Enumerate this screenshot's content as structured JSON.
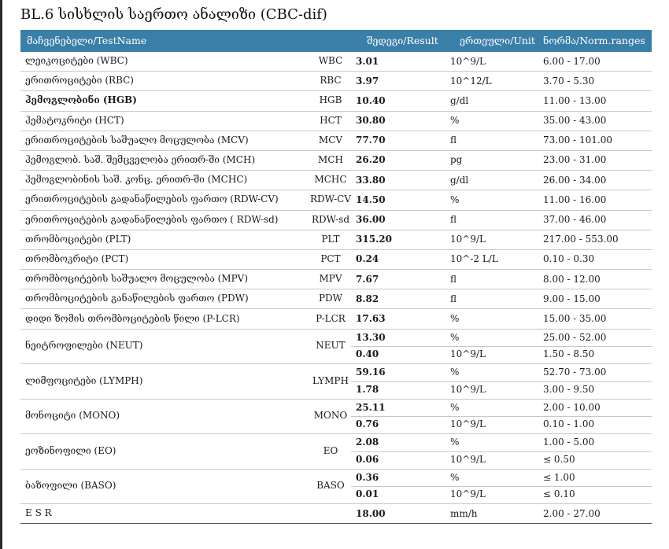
{
  "title": "BL.6   სისხლის საერთო ანალიზი (CBC-dif)",
  "header": {
    "name": "მაჩვენებელი/TestName",
    "result": "შედეგი/Result",
    "unit": "ერთეული/Unit",
    "range": "ნორმა/Norm.ranges"
  },
  "rows": [
    {
      "name": "ლეიკოციტები (WBC)",
      "code": "WBC",
      "vals": [
        {
          "result": "3.01",
          "unit": "10^9/L",
          "range": "6.00 - 17.00"
        }
      ]
    },
    {
      "name": "ერითროციტები (RBC)",
      "code": "RBC",
      "vals": [
        {
          "result": "3.97",
          "unit": "10^12/L",
          "range": "3.70 - 5.30"
        }
      ]
    },
    {
      "name": "ჰემოგლობინი (HGB)",
      "code": "HGB",
      "bold": true,
      "vals": [
        {
          "result": "10.40",
          "unit": "g/dl",
          "range": "11.00 - 13.00"
        }
      ]
    },
    {
      "name": "ჰემატოკრიტი (HCT)",
      "code": "HCT",
      "vals": [
        {
          "result": "30.80",
          "unit": "%",
          "range": "35.00 - 43.00"
        }
      ]
    },
    {
      "name": "ერითროციტების საშუალო მოცულობა (MCV)",
      "code": "MCV",
      "vals": [
        {
          "result": "77.70",
          "unit": "fl",
          "range": "73.00 - 101.00"
        }
      ]
    },
    {
      "name": "ჰემოგლობ. საშ. შემცველობა ერითრ-ში (MCH)",
      "code": "MCH",
      "vals": [
        {
          "result": "26.20",
          "unit": "pg",
          "range": "23.00 - 31.00"
        }
      ]
    },
    {
      "name": "ჰემოგლობინის საშ. კონც. ერითრ-ში (MCHC)",
      "code": "MCHC",
      "vals": [
        {
          "result": "33.80",
          "unit": "g/dl",
          "range": "26.00 - 34.00"
        }
      ]
    },
    {
      "name": "ერითროციტების გადანაწილების ფართო (RDW-CV)",
      "code": "RDW-CV",
      "vals": [
        {
          "result": "14.50",
          "unit": "%",
          "range": "11.00 - 16.00"
        }
      ]
    },
    {
      "name": "ერითროციტების გადანაწილების ფართო ( RDW-sd)",
      "code": "RDW-sd",
      "vals": [
        {
          "result": "36.00",
          "unit": "fl",
          "range": "37.00 - 46.00"
        }
      ]
    },
    {
      "name": "თრომბოციტები (PLT)",
      "code": "PLT",
      "vals": [
        {
          "result": "315.20",
          "unit": "10^9/L",
          "range": "217.00 - 553.00"
        }
      ]
    },
    {
      "name": "თრომბოკრიტი (PCT)",
      "code": "PCT",
      "vals": [
        {
          "result": "0.24",
          "unit": "10^-2 L/L",
          "range": "0.10 - 0.30"
        }
      ]
    },
    {
      "name": "თრომბოციტების საშუალო მოცულობა (MPV)",
      "code": "MPV",
      "vals": [
        {
          "result": "7.67",
          "unit": "fl",
          "range": "8.00 - 12.00"
        }
      ]
    },
    {
      "name": "თრომბოციტების განაწილების ფართო (PDW)",
      "code": "PDW",
      "vals": [
        {
          "result": "8.82",
          "unit": "fl",
          "range": "9.00 - 15.00"
        }
      ]
    },
    {
      "name": "დიდი ზომის თრომბოციტების წილი (P-LCR)",
      "code": "P-LCR",
      "vals": [
        {
          "result": "17.63",
          "unit": "%",
          "range": "15.00 - 35.00"
        }
      ]
    },
    {
      "name": "ნეიტროფილები (NEUT)",
      "code": "NEUT",
      "vals": [
        {
          "result": "13.30",
          "unit": "%",
          "range": "25.00 - 52.00"
        },
        {
          "result": "0.40",
          "unit": "10^9/L",
          "range": "1.50 - 8.50"
        }
      ]
    },
    {
      "name": "ლიმფოციტები (LYMPH)",
      "code": "LYMPH",
      "vals": [
        {
          "result": "59.16",
          "unit": "%",
          "range": "52.70 - 73.00"
        },
        {
          "result": "1.78",
          "unit": "10^9/L",
          "range": "3.00 - 9.50"
        }
      ]
    },
    {
      "name": "მონოციტი (MONO)",
      "code": "MONO",
      "vals": [
        {
          "result": "25.11",
          "unit": "%",
          "range": "2.00 - 10.00"
        },
        {
          "result": "0.76",
          "unit": "10^9/L",
          "range": "0.10 - 1.00"
        }
      ]
    },
    {
      "name": "ეოზინოფილი (EO)",
      "code": "EO",
      "vals": [
        {
          "result": "2.08",
          "unit": "%",
          "range": "1.00 - 5.00"
        },
        {
          "result": "0.06",
          "unit": "10^9/L",
          "range": "≤ 0.50"
        }
      ]
    },
    {
      "name": "ბაზოფილი (BASO)",
      "code": "BASO",
      "vals": [
        {
          "result": "0.36",
          "unit": "%",
          "range": "≤ 1.00"
        },
        {
          "result": "0.01",
          "unit": "10^9/L",
          "range": "≤ 0.10"
        }
      ]
    },
    {
      "name": "E S R",
      "code": "",
      "vals": [
        {
          "result": "18.00",
          "unit": "mm/h",
          "range": "2.00 - 27.00"
        }
      ]
    }
  ]
}
